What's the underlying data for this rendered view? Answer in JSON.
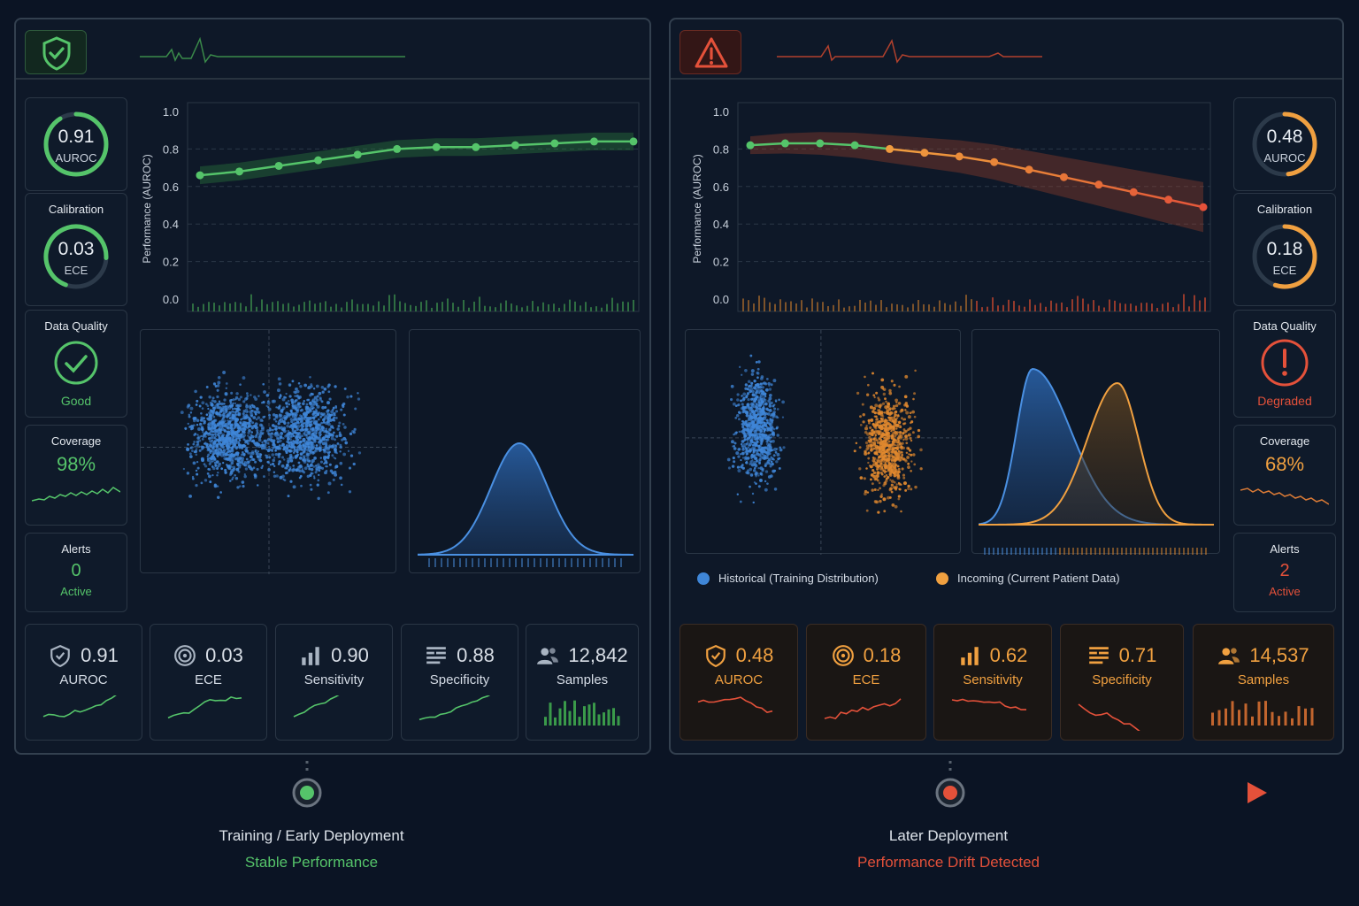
{
  "colors": {
    "good": "#55c46a",
    "bad": "#e4513a",
    "warn": "#f0a040",
    "blue": "#3f86d8"
  },
  "left": {
    "status_icon": "shield-check-icon",
    "side": {
      "auroc": {
        "value": "0.91",
        "label": "AUROC",
        "fraction": 0.91
      },
      "calibration": {
        "title": "Calibration",
        "value": "0.03",
        "label": "ECE",
        "fraction": 0.7
      },
      "data_quality": {
        "title": "Data Quality",
        "status": "Good",
        "icon": "check-circle-icon"
      },
      "coverage": {
        "title": "Coverage",
        "value": "98%"
      },
      "alerts": {
        "title": "Alerts",
        "count": "0",
        "status": "Active"
      }
    },
    "chart_data": {
      "type": "line",
      "ylabel": "Performance (AUROC)",
      "ylim": [
        0.0,
        1.0
      ],
      "yticks": [
        "0.0",
        "0.2",
        "0.4",
        "0.6",
        "0.8",
        "1.0"
      ],
      "grid": true,
      "series": [
        {
          "values": [
            0.66,
            0.68,
            0.71,
            0.74,
            0.77,
            0.8,
            0.81,
            0.81,
            0.82,
            0.83,
            0.84,
            0.84
          ]
        }
      ]
    },
    "metrics": [
      {
        "icon": "shield-check-icon",
        "value": "0.91",
        "label": "AUROC"
      },
      {
        "icon": "target-icon",
        "value": "0.03",
        "label": "ECE"
      },
      {
        "icon": "bar-chart-icon",
        "value": "0.90",
        "label": "Sensitivity"
      },
      {
        "icon": "list-lines-icon",
        "value": "0.88",
        "label": "Specificity"
      },
      {
        "icon": "users-icon",
        "value": "12,842",
        "label": "Samples"
      }
    ]
  },
  "right": {
    "status_icon": "warning-triangle-icon",
    "side": {
      "auroc": {
        "value": "0.48",
        "label": "AUROC",
        "fraction": 0.48
      },
      "calibration": {
        "title": "Calibration",
        "value": "0.18",
        "label": "ECE",
        "fraction": 0.55
      },
      "data_quality": {
        "title": "Data Quality",
        "status": "Degraded",
        "icon": "exclamation-circle-icon"
      },
      "coverage": {
        "title": "Coverage",
        "value": "68%"
      },
      "alerts": {
        "title": "Alerts",
        "count": "2",
        "status": "Active"
      }
    },
    "chart_data": {
      "type": "line",
      "ylabel": "Performance (AUROC)",
      "ylim": [
        0.0,
        1.0
      ],
      "yticks": [
        "0.0",
        "0.2",
        "0.4",
        "0.6",
        "0.8",
        "1.0"
      ],
      "grid": true,
      "series": [
        {
          "values": [
            0.82,
            0.83,
            0.83,
            0.82,
            0.8,
            0.78,
            0.76,
            0.73,
            0.69,
            0.65,
            0.61,
            0.57,
            0.53,
            0.49
          ]
        }
      ]
    },
    "legend": {
      "historical": "Historical (Training Distribution)",
      "incoming": "Incoming (Current Patient Data)"
    },
    "metrics": [
      {
        "icon": "shield-check-icon",
        "value": "0.48",
        "label": "AUROC"
      },
      {
        "icon": "target-icon",
        "value": "0.18",
        "label": "ECE"
      },
      {
        "icon": "bar-chart-icon",
        "value": "0.62",
        "label": "Sensitivity"
      },
      {
        "icon": "list-lines-icon",
        "value": "0.71",
        "label": "Specificity"
      },
      {
        "icon": "users-icon",
        "value": "14,537",
        "label": "Samples"
      }
    ]
  },
  "timeline": {
    "early": {
      "title": "Training / Early Deployment",
      "status": "Stable Performance"
    },
    "later": {
      "title": "Later Deployment",
      "status": "Performance Drift Detected"
    }
  }
}
